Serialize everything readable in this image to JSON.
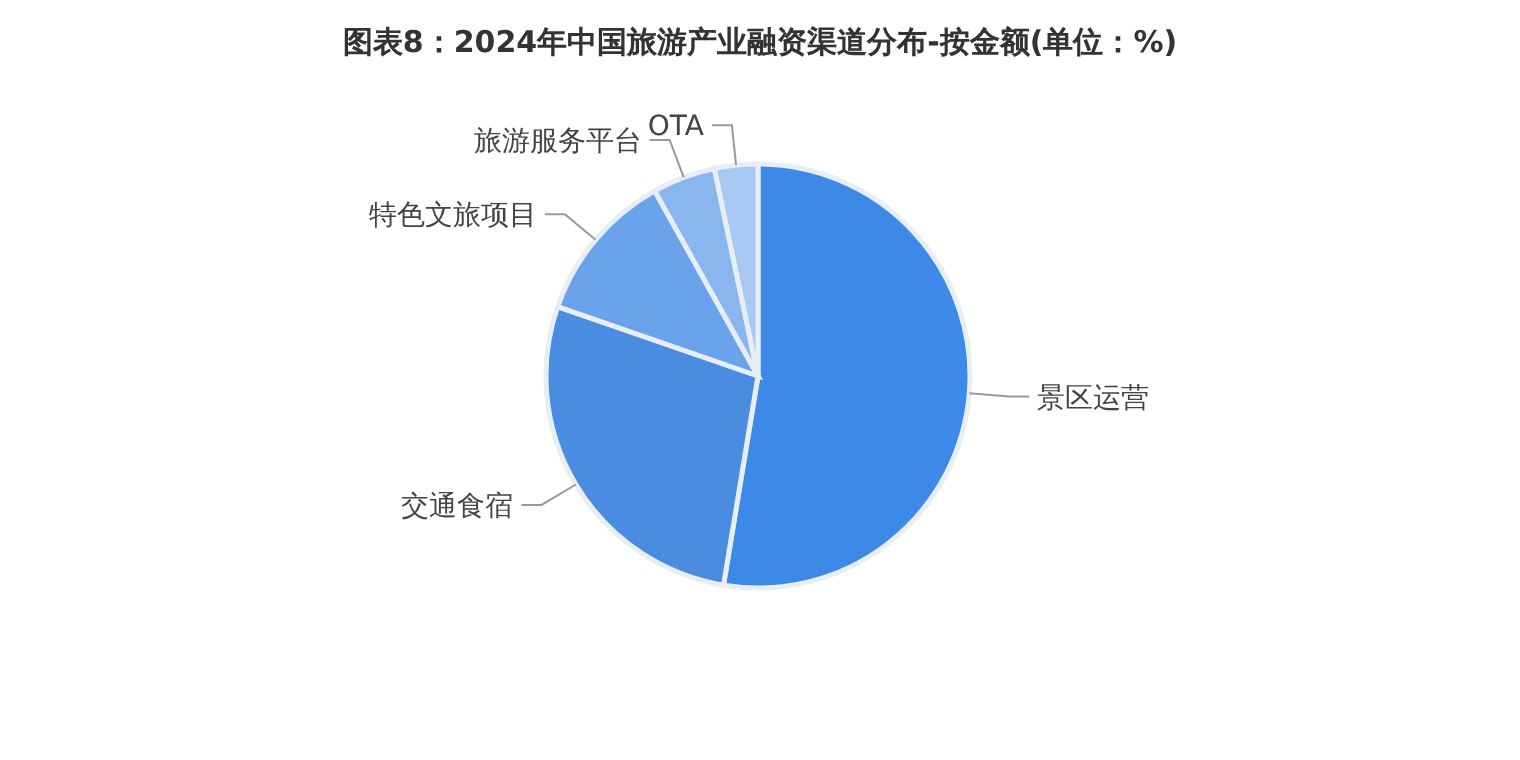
{
  "chart_data": {
    "type": "pie",
    "title": "图表8：2024年中国旅游产业融资渠道分布-按金额(单位：%)",
    "categories": [
      "景区运营",
      "交通食宿",
      "特色文旅项目",
      "旅游服务平台",
      "OTA"
    ],
    "values": [
      52.6,
      27.7,
      11.6,
      4.8,
      3.3
    ],
    "colors": [
      "#3d89e8",
      "#4a8ce0",
      "#6aa2ec",
      "#8ab6f0",
      "#a9c9f5"
    ]
  }
}
